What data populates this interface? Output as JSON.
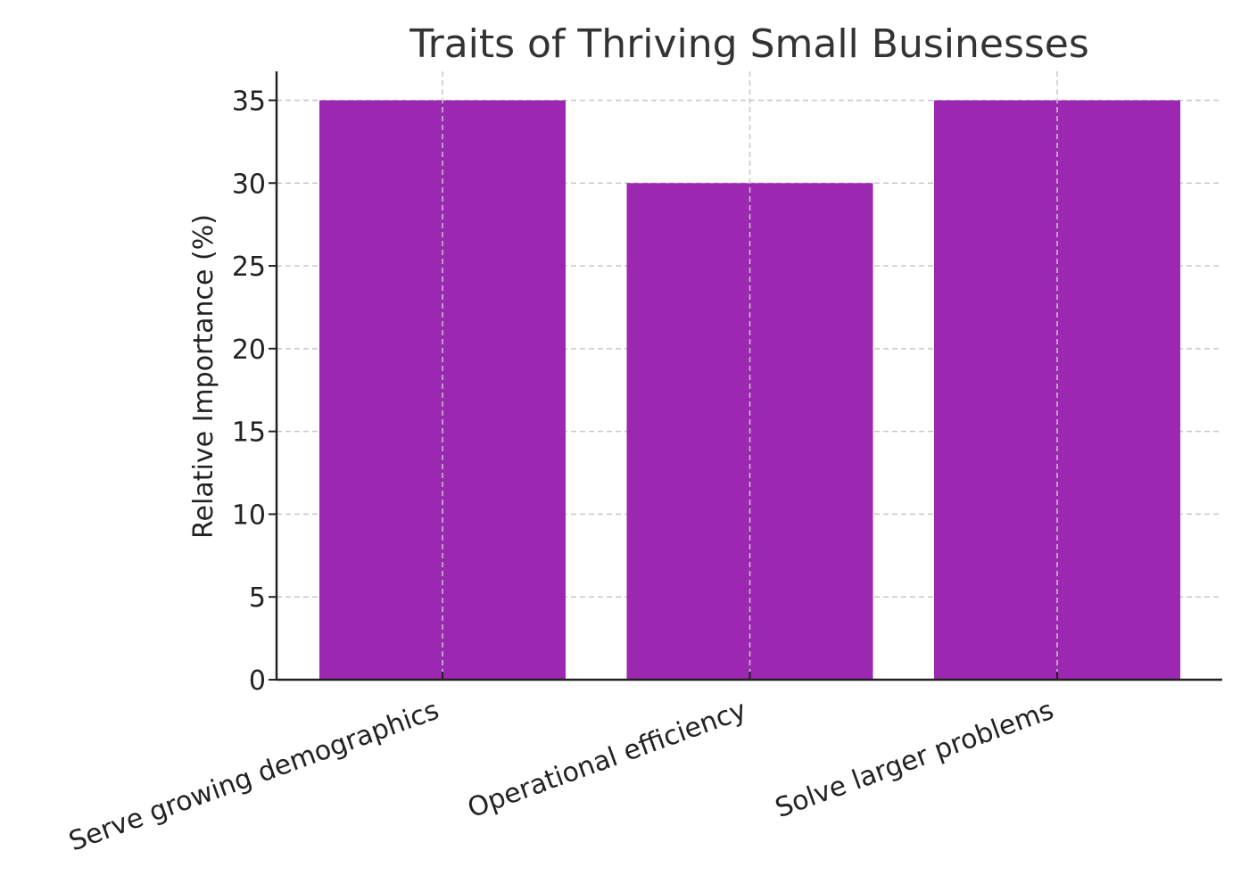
{
  "chart_data": {
    "type": "bar",
    "title": "Traits of Thriving Small Businesses",
    "xlabel": "",
    "ylabel": "Relative Importance (%)",
    "categories": [
      "Serve growing demographics",
      "Operational efficiency",
      "Solve larger problems"
    ],
    "values": [
      35,
      30,
      35
    ],
    "ylim": [
      0,
      36.75
    ],
    "yticks": [
      0,
      5,
      10,
      15,
      20,
      25,
      30,
      35
    ],
    "bar_color": "#9c27b0",
    "grid": true,
    "legend": "none"
  }
}
